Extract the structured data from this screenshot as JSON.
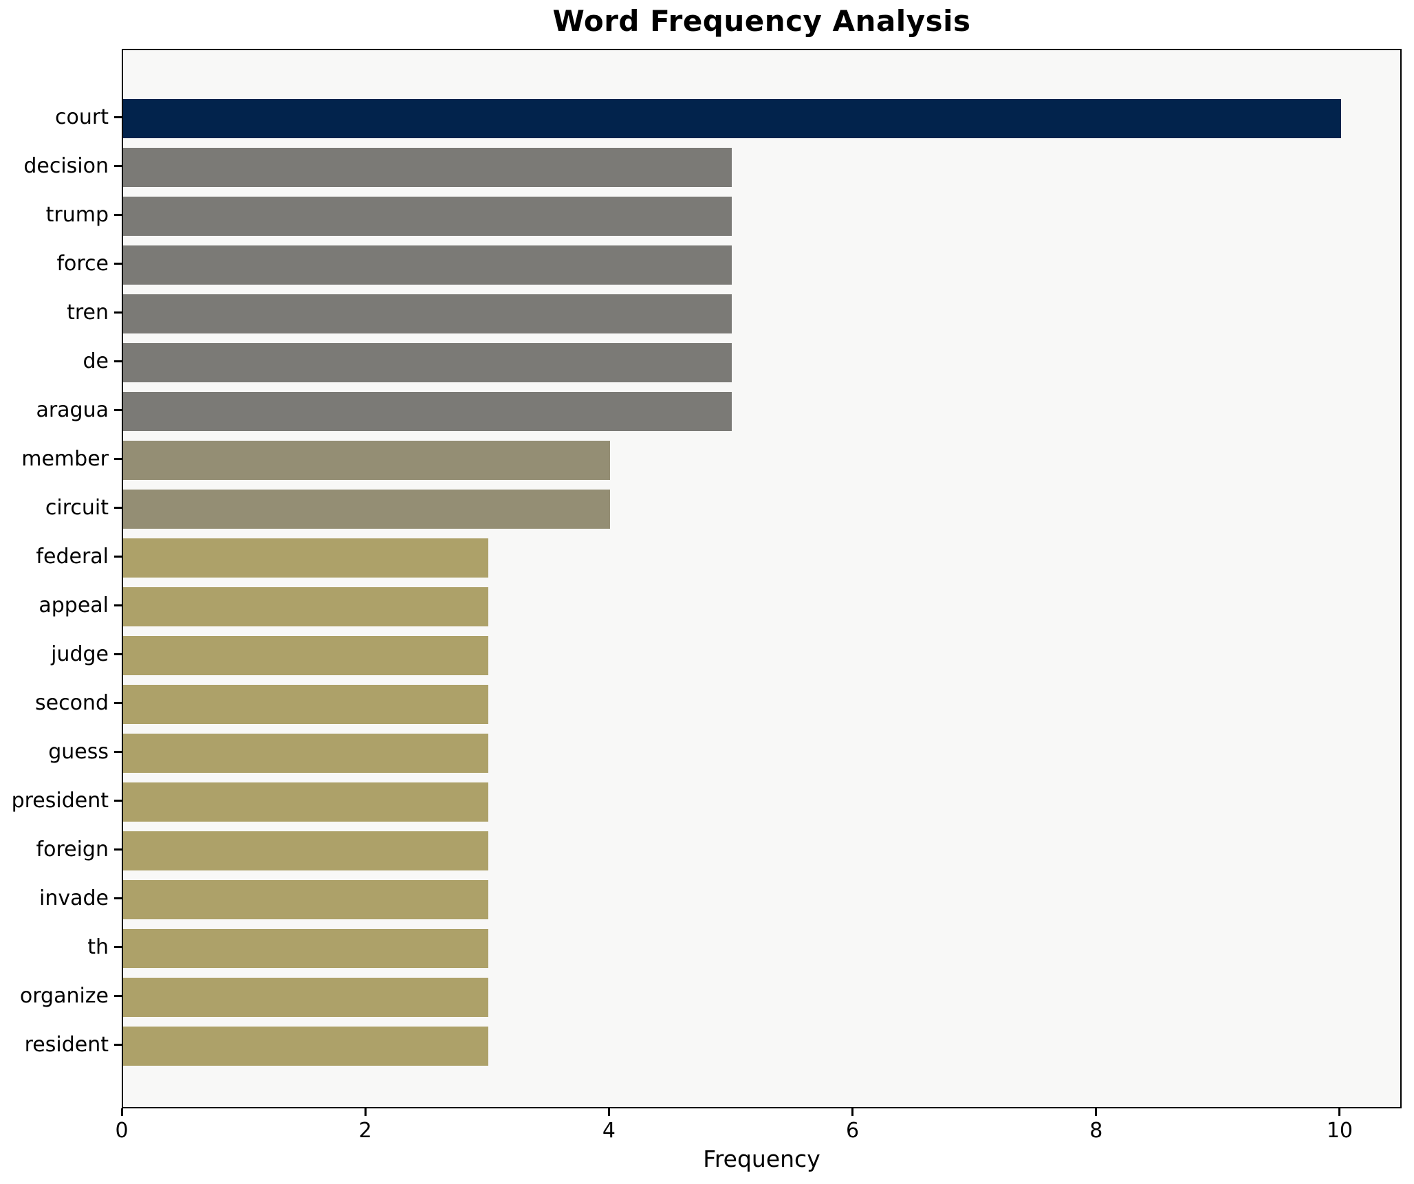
{
  "chart_data": {
    "type": "bar",
    "orientation": "horizontal",
    "title": "Word Frequency Analysis",
    "xlabel": "Frequency",
    "ylabel": "",
    "categories": [
      "court",
      "decision",
      "trump",
      "force",
      "tren",
      "de",
      "aragua",
      "member",
      "circuit",
      "federal",
      "appeal",
      "judge",
      "second",
      "guess",
      "president",
      "foreign",
      "invade",
      "th",
      "organize",
      "resident"
    ],
    "values": [
      10,
      5,
      5,
      5,
      5,
      5,
      5,
      4,
      4,
      3,
      3,
      3,
      3,
      3,
      3,
      3,
      3,
      3,
      3,
      3
    ],
    "bar_colors": [
      "#02234c",
      "#7b7a76",
      "#7b7a76",
      "#7b7a76",
      "#7b7a76",
      "#7b7a76",
      "#7b7a76",
      "#948e74",
      "#948e74",
      "#ada169",
      "#ada169",
      "#ada169",
      "#ada169",
      "#ada169",
      "#ada169",
      "#ada169",
      "#ada169",
      "#ada169",
      "#ada169",
      "#ada169"
    ],
    "xticks": [
      0,
      2,
      4,
      6,
      8,
      10
    ],
    "xlim": [
      0,
      10.5
    ],
    "grid": false,
    "legend": null,
    "plot_bg": "#f8f8f7",
    "figure_bg": "#ffffff",
    "text_color": "#000000"
  }
}
